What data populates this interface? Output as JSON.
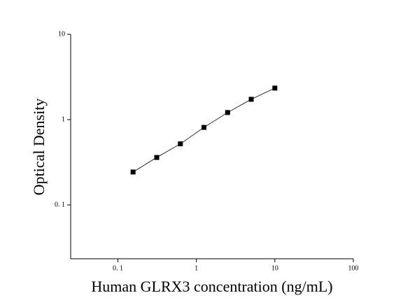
{
  "chart_data": {
    "type": "scatter",
    "x_label": "Human GLRX3 concentration (ng/mL)",
    "y_label": "Optical Density",
    "x": [
      0.156,
      0.3125,
      0.625,
      1.25,
      2.5,
      5,
      10
    ],
    "series": [
      {
        "color": "#000000",
        "values": [
          0.243,
          0.36,
          0.52,
          0.81,
          1.21,
          1.73,
          2.34
        ]
      }
    ],
    "connect_line": true,
    "xlog": true,
    "ylog": true,
    "xlim": [
      0.025,
      100
    ],
    "ylim": [
      0.0234,
      10
    ],
    "xticks": [
      {
        "value": 0.1,
        "label": "0. 1"
      },
      1,
      10,
      100
    ],
    "yticks": [
      {
        "value": 0.1,
        "label": "0. 1"
      },
      1,
      10
    ]
  }
}
